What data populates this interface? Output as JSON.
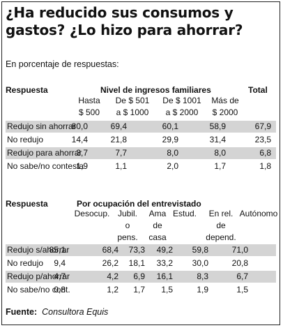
{
  "title": "¿Ha reducido sus consumos y gastos? ¿Lo hizo para ahorrar?",
  "subtitle": "En porcentaje de respuestas:",
  "table1": {
    "response_header": "Respuesta",
    "group_header": "Nivel de ingresos familiares",
    "total_header": "Total",
    "columns": [
      {
        "l1": "Hasta",
        "l2": "$ 500"
      },
      {
        "l1": "De $ 501",
        "l2": "a $ 1000"
      },
      {
        "l1": "De $ 1001",
        "l2": "a $ 2000"
      },
      {
        "l1": "Más de",
        "l2": "$ 2000"
      }
    ],
    "rows": [
      {
        "label": "Redujo sin ahorrar",
        "values": [
          "80,0",
          "69,4",
          "60,1",
          "58,9",
          "67,9"
        ]
      },
      {
        "label": "No redujo",
        "values": [
          "14,4",
          "21,8",
          "29,9",
          "31,4",
          "23,5"
        ]
      },
      {
        "label": "Redujo para ahorrar",
        "values": [
          "3,7",
          "7,7",
          "8,0",
          "8,0",
          "6,8"
        ]
      },
      {
        "label": "No sabe/no contesta",
        "values": [
          "1,9",
          "1,1",
          "2,0",
          "1,7",
          "1,8"
        ]
      }
    ]
  },
  "table2": {
    "response_header": "Respuesta",
    "group_header": "Por ocupación del entrevistado",
    "columns": [
      {
        "l1": "Desocup.",
        "l2": "",
        "l3": ""
      },
      {
        "l1": "Jubil.",
        "l2": "o",
        "l3": "pens."
      },
      {
        "l1": "Ama",
        "l2": "de",
        "l3": "casa"
      },
      {
        "l1": "Estud.",
        "l2": "",
        "l3": ""
      },
      {
        "l1": "En rel.",
        "l2": "de",
        "l3": "depend."
      },
      {
        "l1": "Autónomo",
        "l2": "",
        "l3": ""
      }
    ],
    "rows": [
      {
        "label": "Redujo s/ahorrar",
        "values": [
          "85,1",
          "68,4",
          "73,3",
          "49,2",
          "59,8",
          "71,0"
        ]
      },
      {
        "label": "No redujo",
        "values": [
          "9,4",
          "26,2",
          "18,1",
          "33,2",
          "30,0",
          "20,8"
        ]
      },
      {
        "label": "Redujo p/ahorrar",
        "values": [
          "4,7",
          "4,2",
          "6,9",
          "16,1",
          "8,3",
          "6,7"
        ]
      },
      {
        "label": "No sabe/no cont.",
        "values": [
          "0,8",
          "1,2",
          "1,7",
          "1,5",
          "1,9",
          "1,5"
        ]
      }
    ]
  },
  "source": {
    "label": "Fuente:",
    "name": "Consultora Equis"
  }
}
